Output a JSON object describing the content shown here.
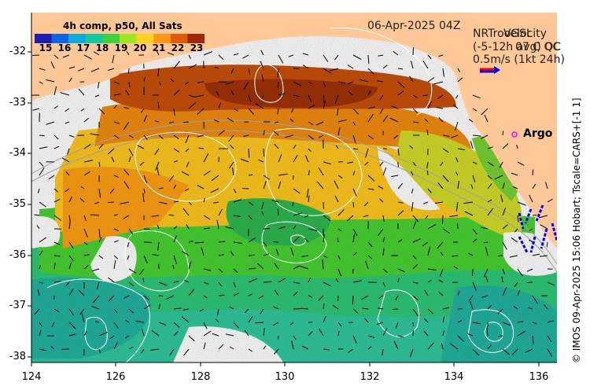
{
  "header": {
    "date": "06-Apr-2025 04Z",
    "overlay_line1": "NRTrooGSL",
    "overlay_line1b": "Velocity",
    "overlay_line2": "(-5-12h avg) OC",
    "overlay_line2b": "07 C QC",
    "scale_text": "0.5m/s (1kt 24h)"
  },
  "colorbar": {
    "title": "4h comp, p50, All Sats",
    "labels": [
      "15",
      "16",
      "17",
      "18",
      "19",
      "20",
      "21",
      "22",
      "23"
    ],
    "min": 14.5,
    "max": 23.5,
    "colors": [
      "#1c1cb4",
      "#0a64e6",
      "#0aaadc",
      "#12c8a0",
      "#3cd23c",
      "#a0e61e",
      "#ffd21e",
      "#ff9614",
      "#e05a0a",
      "#a0280a"
    ]
  },
  "axes": {
    "x_ticks": [
      "124",
      "126",
      "128",
      "130",
      "132",
      "134",
      "136"
    ],
    "y_ticks": [
      "-32",
      "-33",
      "-34",
      "-35",
      "-36",
      "-37",
      "-38"
    ],
    "x_range": [
      124,
      136.4
    ],
    "y_range": [
      -38.05,
      -31.35
    ]
  },
  "legend": {
    "argo_label": "Argo",
    "argo_color": "#ff00ff"
  },
  "credit": "© IMOS 09-Apr-2025 15:06 Hobart; Tscale=CARS+[-1 1]",
  "colors": {
    "land": "#ffc896",
    "nodata": "#ffffff",
    "vector": "#000000",
    "dsl_vector": "#0000ff"
  }
}
